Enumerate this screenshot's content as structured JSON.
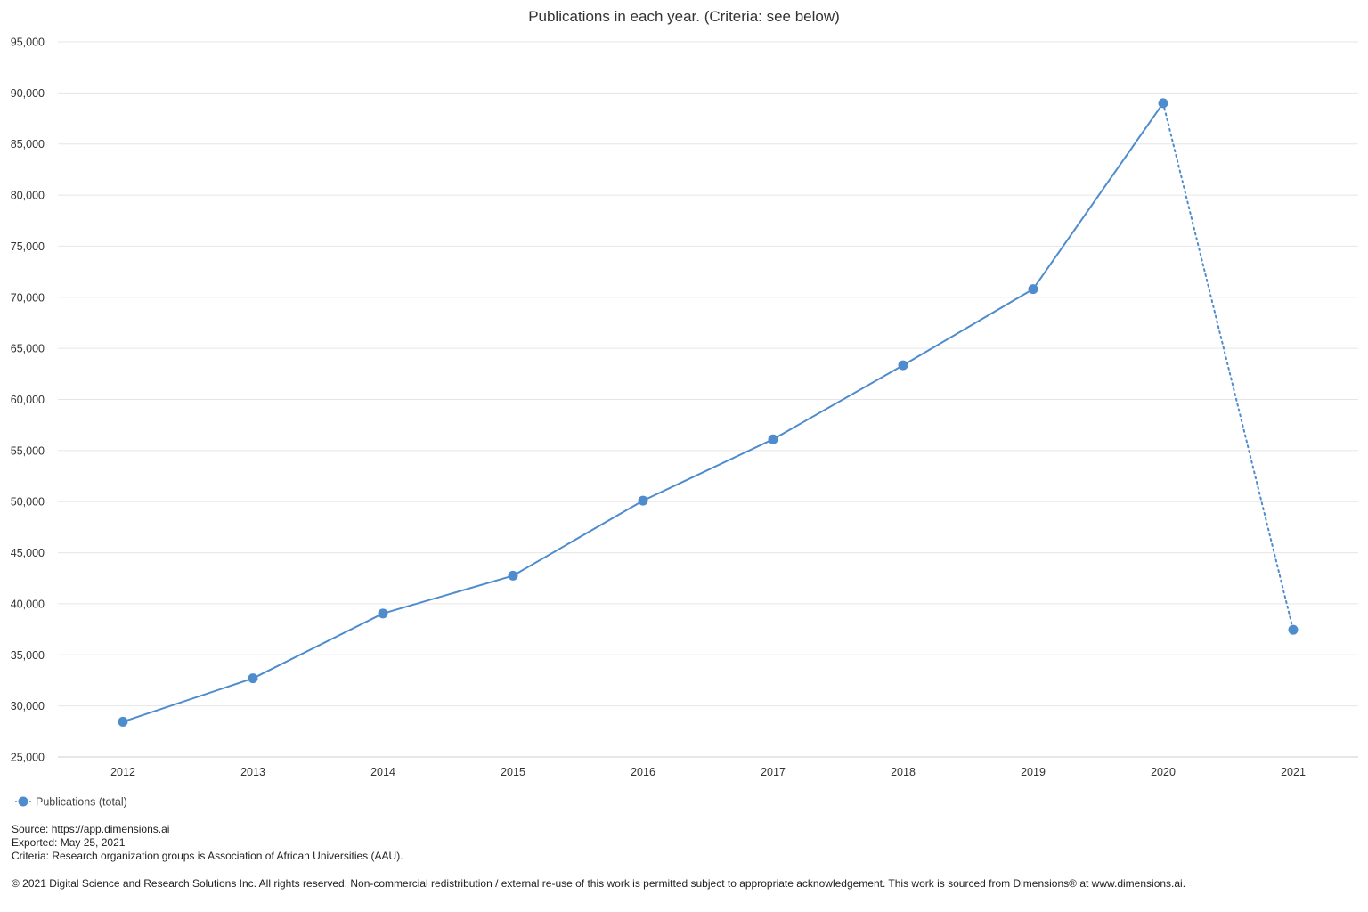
{
  "chart_data": {
    "type": "line",
    "title": "Publications in each year. (Criteria: see below)",
    "xlabel": "",
    "ylabel": "",
    "x": [
      "2012",
      "2013",
      "2014",
      "2015",
      "2016",
      "2017",
      "2018",
      "2019",
      "2020",
      "2021"
    ],
    "series": [
      {
        "name": "Publications (total)",
        "values": [
          28450,
          32700,
          39050,
          42750,
          50100,
          56100,
          63350,
          70800,
          89000,
          37450
        ],
        "color": "#4e8ccd",
        "dashed_from_index": 8
      }
    ],
    "ylim": [
      25000,
      95000
    ],
    "yticks": [
      25000,
      30000,
      35000,
      40000,
      45000,
      50000,
      55000,
      60000,
      65000,
      70000,
      75000,
      80000,
      85000,
      90000,
      95000
    ],
    "ytick_labels": [
      "25,000",
      "30,000",
      "35,000",
      "40,000",
      "45,000",
      "50,000",
      "55,000",
      "60,000",
      "65,000",
      "70,000",
      "75,000",
      "80,000",
      "85,000",
      "90,000",
      "95,000"
    ],
    "grid": true,
    "legend_position": "bottom-left"
  },
  "footer": {
    "source": "Source: https://app.dimensions.ai",
    "exported": "Exported: May 25, 2021",
    "criteria": "Criteria: Research organization groups is Association of African Universities (AAU).",
    "copyright": "© 2021 Digital Science and Research Solutions Inc. All rights reserved. Non-commercial redistribution / external re-use of this work is permitted subject to appropriate acknowledgement. This work is sourced from Dimensions® at www.dimensions.ai."
  }
}
